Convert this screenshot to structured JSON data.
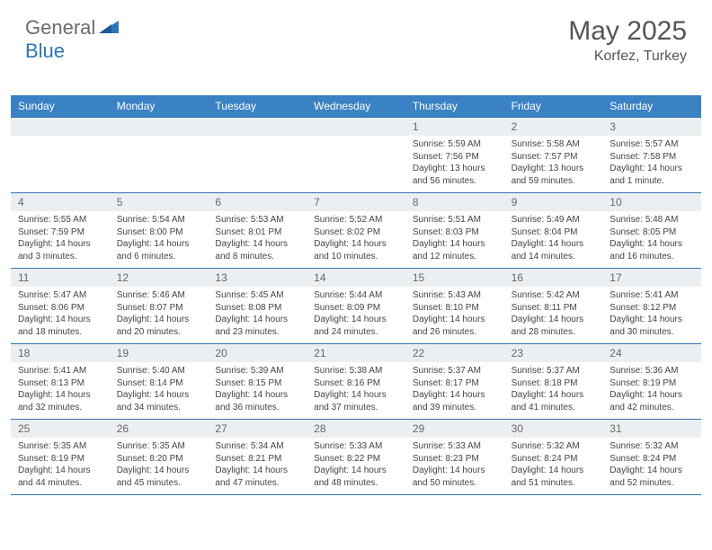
{
  "brand": {
    "part1": "General",
    "part2": "Blue"
  },
  "title": "May 2025",
  "location": "Korfez, Turkey",
  "colors": {
    "header_bg": "#3b82c4",
    "accent": "#2f74b5",
    "num_bg": "#eceff1",
    "text": "#444444",
    "muted": "#666666"
  },
  "typography": {
    "title_fontsize": 30,
    "location_fontsize": 16,
    "day_header_fontsize": 12,
    "cell_fontsize": 10
  },
  "day_names": [
    "Sunday",
    "Monday",
    "Tuesday",
    "Wednesday",
    "Thursday",
    "Friday",
    "Saturday"
  ],
  "weeks": [
    {
      "nums": [
        "",
        "",
        "",
        "",
        "1",
        "2",
        "3"
      ],
      "cells": [
        {
          "sunrise": "",
          "sunset": "",
          "daylight": ""
        },
        {
          "sunrise": "",
          "sunset": "",
          "daylight": ""
        },
        {
          "sunrise": "",
          "sunset": "",
          "daylight": ""
        },
        {
          "sunrise": "",
          "sunset": "",
          "daylight": ""
        },
        {
          "sunrise": "Sunrise: 5:59 AM",
          "sunset": "Sunset: 7:56 PM",
          "daylight": "Daylight: 13 hours and 56 minutes."
        },
        {
          "sunrise": "Sunrise: 5:58 AM",
          "sunset": "Sunset: 7:57 PM",
          "daylight": "Daylight: 13 hours and 59 minutes."
        },
        {
          "sunrise": "Sunrise: 5:57 AM",
          "sunset": "Sunset: 7:58 PM",
          "daylight": "Daylight: 14 hours and 1 minute."
        }
      ]
    },
    {
      "nums": [
        "4",
        "5",
        "6",
        "7",
        "8",
        "9",
        "10"
      ],
      "cells": [
        {
          "sunrise": "Sunrise: 5:55 AM",
          "sunset": "Sunset: 7:59 PM",
          "daylight": "Daylight: 14 hours and 3 minutes."
        },
        {
          "sunrise": "Sunrise: 5:54 AM",
          "sunset": "Sunset: 8:00 PM",
          "daylight": "Daylight: 14 hours and 6 minutes."
        },
        {
          "sunrise": "Sunrise: 5:53 AM",
          "sunset": "Sunset: 8:01 PM",
          "daylight": "Daylight: 14 hours and 8 minutes."
        },
        {
          "sunrise": "Sunrise: 5:52 AM",
          "sunset": "Sunset: 8:02 PM",
          "daylight": "Daylight: 14 hours and 10 minutes."
        },
        {
          "sunrise": "Sunrise: 5:51 AM",
          "sunset": "Sunset: 8:03 PM",
          "daylight": "Daylight: 14 hours and 12 minutes."
        },
        {
          "sunrise": "Sunrise: 5:49 AM",
          "sunset": "Sunset: 8:04 PM",
          "daylight": "Daylight: 14 hours and 14 minutes."
        },
        {
          "sunrise": "Sunrise: 5:48 AM",
          "sunset": "Sunset: 8:05 PM",
          "daylight": "Daylight: 14 hours and 16 minutes."
        }
      ]
    },
    {
      "nums": [
        "11",
        "12",
        "13",
        "14",
        "15",
        "16",
        "17"
      ],
      "cells": [
        {
          "sunrise": "Sunrise: 5:47 AM",
          "sunset": "Sunset: 8:06 PM",
          "daylight": "Daylight: 14 hours and 18 minutes."
        },
        {
          "sunrise": "Sunrise: 5:46 AM",
          "sunset": "Sunset: 8:07 PM",
          "daylight": "Daylight: 14 hours and 20 minutes."
        },
        {
          "sunrise": "Sunrise: 5:45 AM",
          "sunset": "Sunset: 8:08 PM",
          "daylight": "Daylight: 14 hours and 23 minutes."
        },
        {
          "sunrise": "Sunrise: 5:44 AM",
          "sunset": "Sunset: 8:09 PM",
          "daylight": "Daylight: 14 hours and 24 minutes."
        },
        {
          "sunrise": "Sunrise: 5:43 AM",
          "sunset": "Sunset: 8:10 PM",
          "daylight": "Daylight: 14 hours and 26 minutes."
        },
        {
          "sunrise": "Sunrise: 5:42 AM",
          "sunset": "Sunset: 8:11 PM",
          "daylight": "Daylight: 14 hours and 28 minutes."
        },
        {
          "sunrise": "Sunrise: 5:41 AM",
          "sunset": "Sunset: 8:12 PM",
          "daylight": "Daylight: 14 hours and 30 minutes."
        }
      ]
    },
    {
      "nums": [
        "18",
        "19",
        "20",
        "21",
        "22",
        "23",
        "24"
      ],
      "cells": [
        {
          "sunrise": "Sunrise: 5:41 AM",
          "sunset": "Sunset: 8:13 PM",
          "daylight": "Daylight: 14 hours and 32 minutes."
        },
        {
          "sunrise": "Sunrise: 5:40 AM",
          "sunset": "Sunset: 8:14 PM",
          "daylight": "Daylight: 14 hours and 34 minutes."
        },
        {
          "sunrise": "Sunrise: 5:39 AM",
          "sunset": "Sunset: 8:15 PM",
          "daylight": "Daylight: 14 hours and 36 minutes."
        },
        {
          "sunrise": "Sunrise: 5:38 AM",
          "sunset": "Sunset: 8:16 PM",
          "daylight": "Daylight: 14 hours and 37 minutes."
        },
        {
          "sunrise": "Sunrise: 5:37 AM",
          "sunset": "Sunset: 8:17 PM",
          "daylight": "Daylight: 14 hours and 39 minutes."
        },
        {
          "sunrise": "Sunrise: 5:37 AM",
          "sunset": "Sunset: 8:18 PM",
          "daylight": "Daylight: 14 hours and 41 minutes."
        },
        {
          "sunrise": "Sunrise: 5:36 AM",
          "sunset": "Sunset: 8:19 PM",
          "daylight": "Daylight: 14 hours and 42 minutes."
        }
      ]
    },
    {
      "nums": [
        "25",
        "26",
        "27",
        "28",
        "29",
        "30",
        "31"
      ],
      "cells": [
        {
          "sunrise": "Sunrise: 5:35 AM",
          "sunset": "Sunset: 8:19 PM",
          "daylight": "Daylight: 14 hours and 44 minutes."
        },
        {
          "sunrise": "Sunrise: 5:35 AM",
          "sunset": "Sunset: 8:20 PM",
          "daylight": "Daylight: 14 hours and 45 minutes."
        },
        {
          "sunrise": "Sunrise: 5:34 AM",
          "sunset": "Sunset: 8:21 PM",
          "daylight": "Daylight: 14 hours and 47 minutes."
        },
        {
          "sunrise": "Sunrise: 5:33 AM",
          "sunset": "Sunset: 8:22 PM",
          "daylight": "Daylight: 14 hours and 48 minutes."
        },
        {
          "sunrise": "Sunrise: 5:33 AM",
          "sunset": "Sunset: 8:23 PM",
          "daylight": "Daylight: 14 hours and 50 minutes."
        },
        {
          "sunrise": "Sunrise: 5:32 AM",
          "sunset": "Sunset: 8:24 PM",
          "daylight": "Daylight: 14 hours and 51 minutes."
        },
        {
          "sunrise": "Sunrise: 5:32 AM",
          "sunset": "Sunset: 8:24 PM",
          "daylight": "Daylight: 14 hours and 52 minutes."
        }
      ]
    }
  ]
}
